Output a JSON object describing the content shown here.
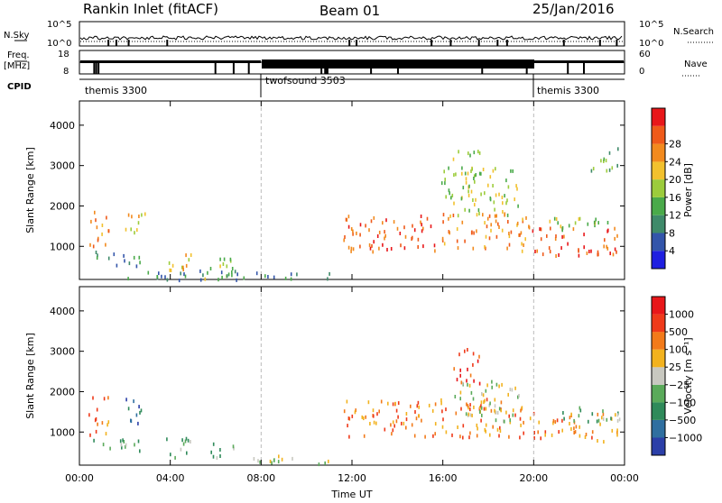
{
  "header": {
    "station": "Rankin Inlet (fitACF)",
    "beam": "Beam 01",
    "date": "25/Jan/2016"
  },
  "noise_panel": {
    "left_label": "N.Sky",
    "right_label": "N.Search",
    "left_ticks": [
      "10^5",
      "10^0"
    ],
    "right_ticks": [
      "10^5",
      "10^0"
    ]
  },
  "freq_panel": {
    "left_label_line1": "Freq.",
    "left_label_line2": "[MHz]",
    "right_label": "Nave",
    "left_ticks": [
      "18",
      "8"
    ],
    "right_ticks": [
      "60",
      "0"
    ]
  },
  "cpid": {
    "label": "CPID",
    "segments": [
      {
        "name": "themis 3300",
        "start": 0,
        "end": 8
      },
      {
        "name": "twofsound 3503",
        "start": 8,
        "end": 20
      },
      {
        "name": "themis 3300",
        "start": 20,
        "end": 24
      }
    ]
  },
  "chart_data": [
    {
      "type": "heatmap",
      "panel": "power",
      "xlabel": "Time UT",
      "ylabel": "Slant Range [km]",
      "xlim": [
        0,
        24
      ],
      "ylim": [
        180,
        4600
      ],
      "y_ticks": [
        "1000",
        "2000",
        "3000",
        "4000"
      ],
      "colorbar": {
        "label": "Power [dB]",
        "tick_labels": [
          "4",
          "8",
          "12",
          "16",
          "20",
          "24",
          "28"
        ],
        "colors": [
          "#1f1fe0",
          "#3355aa",
          "#3f8a6a",
          "#4aaa4a",
          "#9ccc3c",
          "#f2c12e",
          "#f28a1e",
          "#ef5a1a",
          "#e8171a"
        ]
      },
      "scatter_regions": [
        {
          "t0": 0.4,
          "t1": 1.3,
          "r0": 950,
          "r1": 1900,
          "mean": 24
        },
        {
          "t0": 0.5,
          "t1": 2.8,
          "r0": 550,
          "r1": 900,
          "mean": 9
        },
        {
          "t0": 1.9,
          "t1": 2.9,
          "r0": 1250,
          "r1": 1850,
          "mean": 20
        },
        {
          "t0": 3.7,
          "t1": 4.9,
          "r0": 350,
          "r1": 900,
          "mean": 18
        },
        {
          "t0": 5.5,
          "t1": 6.8,
          "r0": 200,
          "r1": 800,
          "mean": 14
        },
        {
          "t0": 2.0,
          "t1": 11.0,
          "r0": 200,
          "r1": 450,
          "mean": 6
        },
        {
          "t0": 11.6,
          "t1": 15.8,
          "r0": 900,
          "r1": 1800,
          "mean": 26
        },
        {
          "t0": 15.8,
          "t1": 19.8,
          "r0": 900,
          "r1": 1850,
          "mean": 24
        },
        {
          "t0": 15.8,
          "t1": 19.3,
          "r0": 1800,
          "r1": 3000,
          "mean": 17
        },
        {
          "t0": 16.4,
          "t1": 17.6,
          "r0": 2700,
          "r1": 3450,
          "mean": 14
        },
        {
          "t0": 19.8,
          "t1": 23.8,
          "r0": 800,
          "r1": 1500,
          "mean": 27
        },
        {
          "t0": 20.6,
          "t1": 23.8,
          "r0": 1400,
          "r1": 1750,
          "mean": 14
        },
        {
          "t0": 22.5,
          "t1": 23.8,
          "r0": 2900,
          "r1": 3500,
          "mean": 12
        }
      ]
    },
    {
      "type": "heatmap",
      "panel": "velocity",
      "xlabel": "Time UT",
      "ylabel": "Slant Range [km]",
      "xlim": [
        0,
        24
      ],
      "ylim": [
        180,
        4600
      ],
      "y_ticks": [
        "1000",
        "2000",
        "3000",
        "4000"
      ],
      "x_ticks": [
        "00:00",
        "04:00",
        "08:00",
        "12:00",
        "16:00",
        "20:00",
        "00:00"
      ],
      "colorbar": {
        "label": "Velocity [m s⁻¹]",
        "tick_labels": [
          "1000",
          "500",
          "100",
          "25",
          "−25",
          "−100",
          "−500",
          "−1000"
        ],
        "colors": [
          "#2b3fa8",
          "#2f6fa0",
          "#2f8a5a",
          "#5aaa5a",
          "#c8c8c0",
          "#f2b21e",
          "#f27a1a",
          "#ef3a1a",
          "#e8171a"
        ]
      },
      "scatter_regions": [
        {
          "t0": 0.4,
          "t1": 1.3,
          "r0": 950,
          "r1": 1900,
          "mean": 6
        },
        {
          "t0": 0.5,
          "t1": 2.8,
          "r0": 550,
          "r1": 900,
          "mean": 3
        },
        {
          "t0": 1.9,
          "t1": 2.9,
          "r0": 1250,
          "r1": 1850,
          "mean": 1
        },
        {
          "t0": 3.7,
          "t1": 4.9,
          "r0": 350,
          "r1": 900,
          "mean": 3
        },
        {
          "t0": 5.5,
          "t1": 6.8,
          "r0": 400,
          "r1": 800,
          "mean": 3
        },
        {
          "t0": 7.5,
          "t1": 11.0,
          "r0": 200,
          "r1": 450,
          "mean": 4
        },
        {
          "t0": 11.6,
          "t1": 15.8,
          "r0": 900,
          "r1": 1800,
          "mean": 6
        },
        {
          "t0": 15.8,
          "t1": 19.8,
          "r0": 900,
          "r1": 1850,
          "mean": 6
        },
        {
          "t0": 16.5,
          "t1": 19.5,
          "r0": 1300,
          "r1": 2300,
          "mean": 4
        },
        {
          "t0": 16.4,
          "t1": 17.6,
          "r0": 2200,
          "r1": 3100,
          "mean": 7
        },
        {
          "t0": 19.8,
          "t1": 23.8,
          "r0": 800,
          "r1": 1500,
          "mean": 6
        },
        {
          "t0": 21.0,
          "t1": 23.8,
          "r0": 1300,
          "r1": 1700,
          "mean": 3
        }
      ]
    }
  ]
}
